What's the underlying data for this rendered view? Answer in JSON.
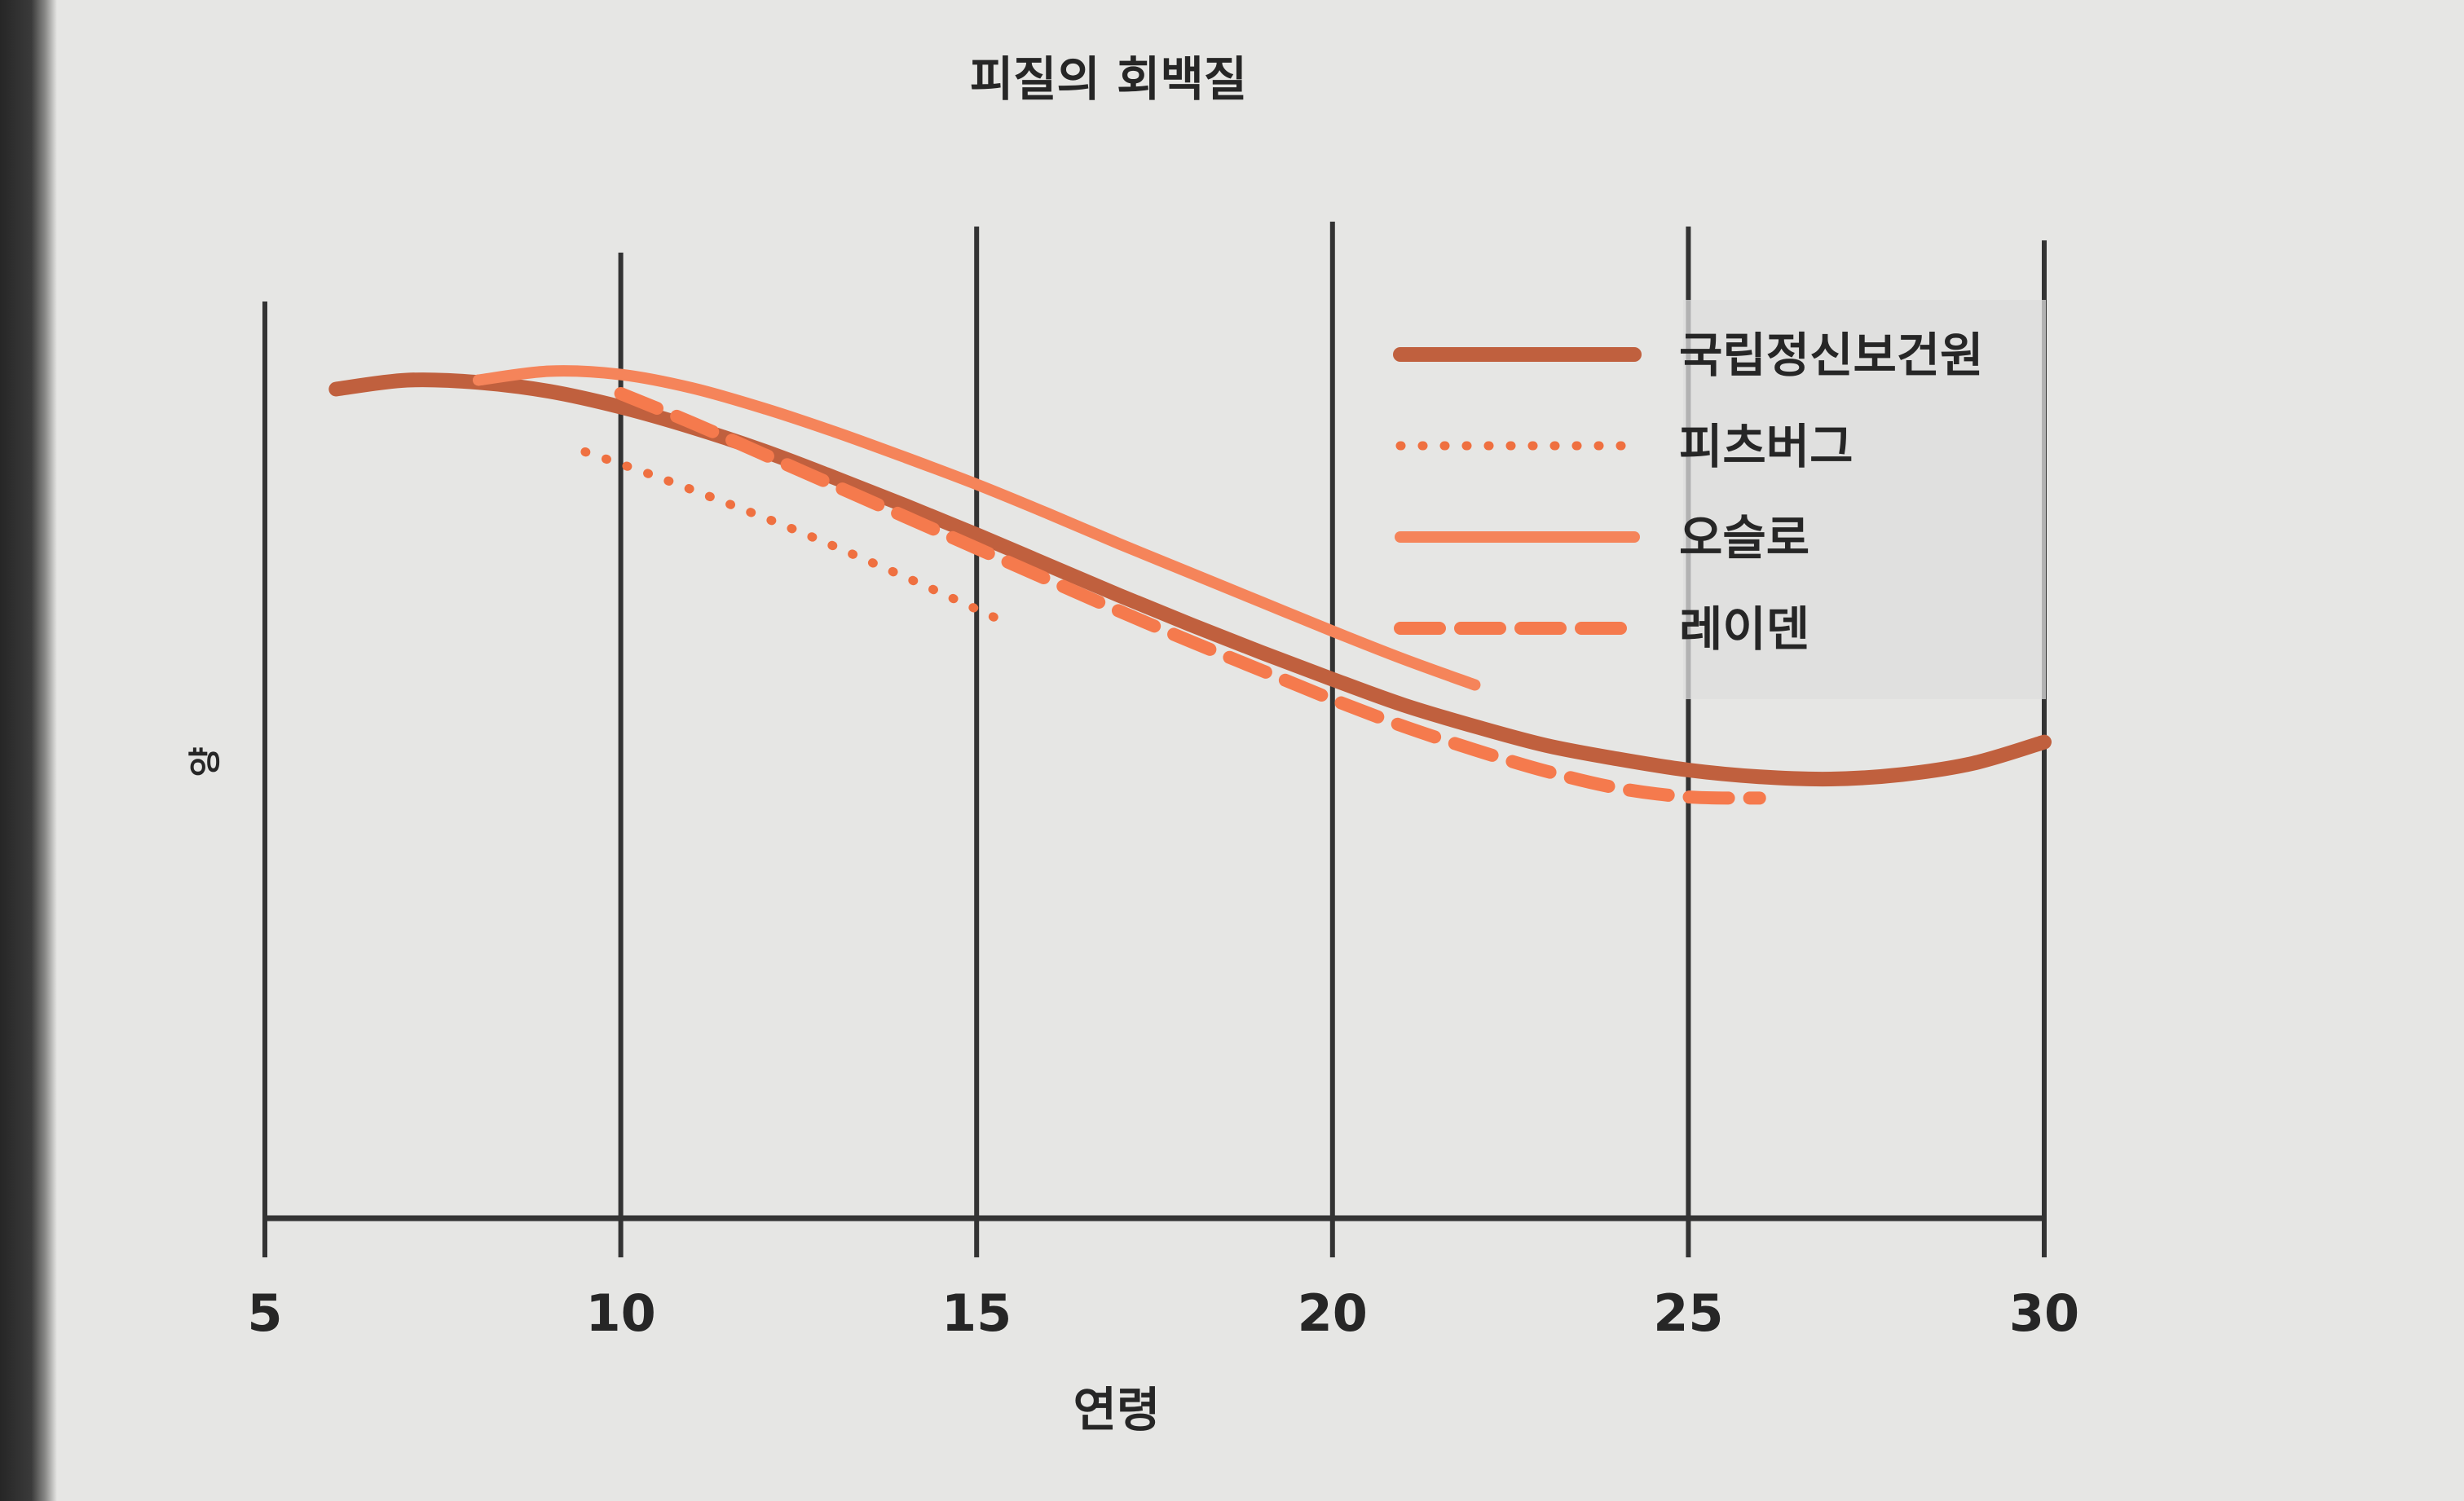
{
  "chart_data": {
    "type": "line",
    "title": "피질의 회백질",
    "xlabel": "연령",
    "ylabel": "양",
    "xlim": [
      5,
      30
    ],
    "ylim": [
      0,
      100
    ],
    "x_ticks": [
      5,
      10,
      15,
      20,
      25,
      30
    ],
    "x_tick_labels": [
      "5",
      "10",
      "15",
      "20",
      "25",
      "30"
    ],
    "grid": "vertical lines at each x tick",
    "legend_position": "top-right",
    "series": [
      {
        "name": "국립정신보건원",
        "style": "solid-thick",
        "color": "#c0603e",
        "x": [
          6.0,
          7.0,
          8.0,
          9.0,
          10.0,
          11.0,
          12.0,
          13.0,
          14.0,
          15.0,
          16.0,
          17.0,
          18.0,
          19.0,
          20.0,
          21.0,
          22.0,
          23.0,
          24.0,
          25.0,
          26.0,
          27.0,
          28.0,
          29.0,
          30.0
        ],
        "y": [
          74.0,
          74.8,
          74.6,
          73.8,
          72.4,
          70.6,
          68.5,
          66.1,
          63.6,
          61.0,
          58.3,
          55.6,
          53.0,
          50.5,
          48.1,
          45.8,
          43.9,
          42.2,
          41.0,
          40.0,
          39.4,
          39.2,
          39.6,
          40.6,
          42.5
        ]
      },
      {
        "name": "피츠버그",
        "style": "dotted",
        "color": "#ef7040",
        "x": [
          9.5,
          10.5,
          11.5,
          12.5,
          13.5,
          14.5,
          15.5
        ],
        "y": [
          68.4,
          66.2,
          63.8,
          61.3,
          58.6,
          55.8,
          52.9
        ]
      },
      {
        "name": "오슬로",
        "style": "solid",
        "color": "#f5845a",
        "x": [
          8.0,
          9.0,
          10.0,
          11.0,
          12.0,
          13.0,
          14.0,
          15.0,
          16.0,
          17.0,
          18.0,
          19.0,
          20.0,
          21.0,
          22.0
        ],
        "y": [
          74.8,
          75.6,
          75.3,
          74.1,
          72.3,
          70.2,
          67.9,
          65.5,
          62.9,
          60.2,
          57.6,
          55.0,
          52.4,
          49.9,
          47.6
        ]
      },
      {
        "name": "레이덴",
        "style": "dashed",
        "color": "#f57a4d",
        "x": [
          10.0,
          11.0,
          12.0,
          13.0,
          14.0,
          15.0,
          16.0,
          17.0,
          18.0,
          19.0,
          20.0,
          21.0,
          22.0,
          23.0,
          24.0,
          25.0,
          26.0
        ],
        "y": [
          73.6,
          71.0,
          68.2,
          65.4,
          62.6,
          59.8,
          57.0,
          54.2,
          51.5,
          48.9,
          46.3,
          43.9,
          41.8,
          39.9,
          38.4,
          37.6,
          37.5
        ]
      }
    ]
  }
}
